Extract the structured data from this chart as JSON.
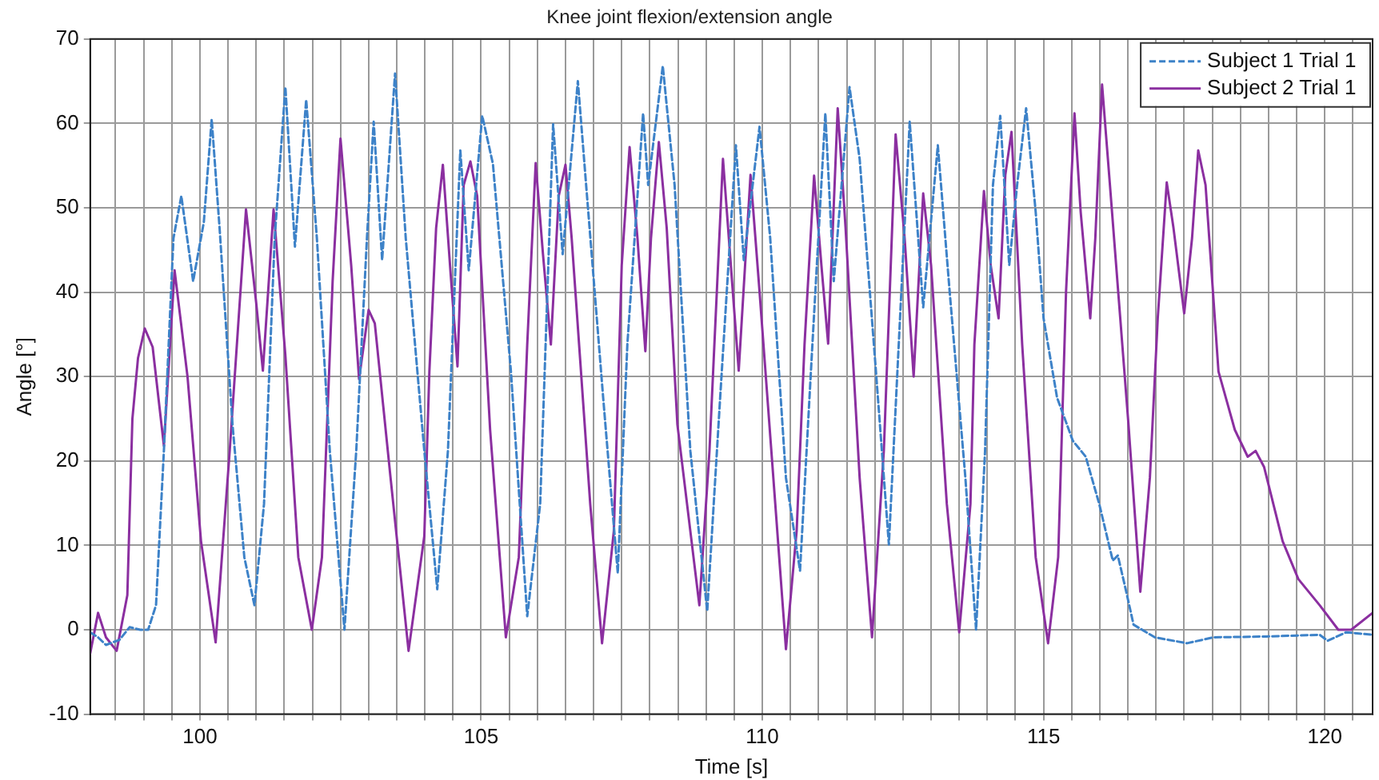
{
  "chart_data": {
    "type": "line",
    "title": "Knee joint flexion/extension angle",
    "xlabel": "Time [s]",
    "ylabel": "Angle [°]",
    "xlim": [
      98.05,
      120.85
    ],
    "xticks": [
      {
        "value": 98.5,
        "label": null
      },
      {
        "value": 99,
        "label": null
      },
      {
        "value": 99.5,
        "label": null
      },
      100,
      {
        "value": 100.5,
        "label": null
      },
      {
        "value": 101,
        "label": null
      },
      {
        "value": 101.5,
        "label": null
      },
      {
        "value": 102,
        "label": null
      },
      {
        "value": 102.5,
        "label": null
      },
      {
        "value": 103,
        "label": null
      },
      {
        "value": 103.5,
        "label": null
      },
      {
        "value": 104,
        "label": null
      },
      {
        "value": 104.5,
        "label": null
      },
      105,
      {
        "value": 105.5,
        "label": null
      },
      {
        "value": 106,
        "label": null
      },
      {
        "value": 106.5,
        "label": null
      },
      {
        "value": 107,
        "label": null
      },
      {
        "value": 107.5,
        "label": null
      },
      {
        "value": 108,
        "label": null
      },
      {
        "value": 108.5,
        "label": null
      },
      {
        "value": 109,
        "label": null
      },
      {
        "value": 109.5,
        "label": null
      },
      110,
      {
        "value": 110.5,
        "label": null
      },
      {
        "value": 111,
        "label": null
      },
      {
        "value": 111.5,
        "label": null
      },
      {
        "value": 112,
        "label": null
      },
      {
        "value": 112.5,
        "label": null
      },
      {
        "value": 113,
        "label": null
      },
      {
        "value": 113.5,
        "label": null
      },
      {
        "value": 114,
        "label": null
      },
      {
        "value": 114.5,
        "label": null
      },
      115,
      {
        "value": 115.5,
        "label": null
      },
      {
        "value": 116,
        "label": null
      },
      {
        "value": 116.5,
        "label": null
      },
      {
        "value": 117,
        "label": null
      },
      {
        "value": 117.5,
        "label": null
      },
      {
        "value": 118,
        "label": null
      },
      {
        "value": 118.5,
        "label": null
      },
      {
        "value": 119,
        "label": null
      },
      {
        "value": 119.5,
        "label": null
      },
      120,
      {
        "value": 120.5,
        "label": null
      }
    ],
    "ylim": [
      -10,
      70
    ],
    "yticks": [
      -10,
      0,
      10,
      20,
      30,
      40,
      50,
      60,
      70
    ],
    "grid": true,
    "legend": "top right",
    "marker": "none",
    "series": [
      {
        "name": "Subject 1 Trial 1",
        "color": "#3d82c8",
        "line_style": "dashed",
        "x": [
          98.05,
          98.19,
          98.33,
          98.57,
          98.75,
          98.94,
          99.08,
          99.22,
          99.36,
          99.53,
          99.67,
          99.88,
          100.07,
          100.21,
          100.35,
          100.58,
          100.79,
          100.97,
          101.14,
          101.33,
          101.52,
          101.69,
          101.89,
          102.08,
          102.31,
          102.57,
          102.78,
          102.97,
          103.09,
          103.24,
          103.47,
          103.66,
          103.99,
          104.22,
          104.41,
          104.63,
          104.78,
          105.02,
          105.21,
          105.53,
          105.82,
          106.05,
          106.28,
          106.45,
          106.72,
          106.89,
          107.17,
          107.43,
          107.6,
          107.88,
          107.97,
          108.23,
          108.44,
          108.72,
          109.02,
          109.25,
          109.53,
          109.67,
          109.95,
          110.14,
          110.42,
          110.67,
          110.89,
          111.12,
          111.27,
          111.55,
          111.73,
          112.02,
          112.25,
          112.62,
          112.86,
          113.12,
          113.33,
          113.61,
          113.8,
          113.96,
          114.1,
          114.23,
          114.39,
          114.53,
          114.69,
          114.86,
          115,
          115.24,
          115.52,
          115.75,
          115.99,
          116.23,
          116.32,
          116.46,
          116.6,
          116.98,
          117.55,
          118.02,
          118.96,
          119.91,
          120.05,
          120.38,
          120.85
        ],
        "values": [
          -0.3,
          -0.9,
          -1.8,
          -1.2,
          0.3,
          0,
          0,
          2.9,
          21.2,
          46.4,
          51.4,
          41.3,
          48.3,
          60.5,
          47.6,
          24.3,
          8.6,
          2.9,
          14.9,
          46.4,
          64.3,
          45.4,
          62.8,
          46.4,
          21.2,
          0,
          21.2,
          46.4,
          60.2,
          43.8,
          65.9,
          46.4,
          21.2,
          4.8,
          21.2,
          56.8,
          42.6,
          60.9,
          55.2,
          30.6,
          1.6,
          14.9,
          59.9,
          44.5,
          65,
          50.8,
          27.5,
          6.7,
          33.8,
          61.2,
          52.7,
          66.8,
          52.7,
          21.2,
          2.2,
          27.5,
          57.4,
          43.8,
          59.6,
          46.4,
          18,
          7,
          33.8,
          61.2,
          41.3,
          64.3,
          55.8,
          30.6,
          10.1,
          60.2,
          38.2,
          57.4,
          40.1,
          18,
          0,
          21.2,
          52.7,
          60.9,
          43.2,
          52.7,
          61.8,
          49.5,
          36.9,
          27.5,
          22.4,
          20.5,
          14.9,
          8.2,
          8.8,
          4.8,
          0.6,
          -0.9,
          -1.6,
          -0.9,
          -0.8,
          -0.6,
          -1.3,
          -0.3,
          -0.6
        ]
      },
      {
        "name": "Subject 2 Trial 1",
        "color": "#8b2fa0",
        "line_style": "solid",
        "x": [
          98.05,
          98.19,
          98.33,
          98.52,
          98.71,
          98.8,
          98.9,
          99.02,
          99.16,
          99.36,
          99.55,
          99.78,
          100.02,
          100.28,
          100.53,
          100.82,
          101,
          101.12,
          101.31,
          101.52,
          101.75,
          101.99,
          102.17,
          102.36,
          102.5,
          102.69,
          102.83,
          103,
          103.11,
          103.39,
          103.71,
          103.99,
          104.08,
          104.2,
          104.32,
          104.46,
          104.58,
          104.69,
          104.81,
          104.93,
          105.16,
          105.44,
          105.67,
          105.82,
          105.97,
          106.1,
          106.24,
          106.38,
          106.5,
          106.61,
          106.94,
          107.15,
          107.36,
          107.5,
          107.64,
          107.78,
          107.92,
          108.02,
          108.16,
          108.3,
          108.49,
          108.88,
          109.06,
          109.3,
          109.44,
          109.58,
          109.79,
          109.95,
          110.23,
          110.42,
          110.61,
          110.75,
          110.92,
          111.05,
          111.17,
          111.34,
          111.48,
          111.73,
          111.95,
          112.16,
          112.37,
          112.53,
          112.69,
          112.86,
          113,
          113.28,
          113.5,
          113.7,
          113.77,
          113.94,
          114.06,
          114.2,
          114.32,
          114.43,
          114.62,
          114.86,
          115.08,
          115.26,
          115.4,
          115.55,
          115.66,
          115.83,
          115.92,
          116.04,
          116.18,
          116.51,
          116.72,
          116.89,
          117.03,
          117.19,
          117.31,
          117.5,
          117.64,
          117.75,
          117.88,
          118.11,
          118.4,
          118.63,
          118.77,
          118.92,
          119.25,
          119.53,
          119.91,
          120.24,
          120.47,
          120.85
        ],
        "values": [
          -2.8,
          2,
          -0.9,
          -2.5,
          4.1,
          25,
          32.2,
          35.7,
          33.5,
          21.8,
          42.6,
          30,
          10.5,
          -1.5,
          21.2,
          49.8,
          38.8,
          30.7,
          49.8,
          32.5,
          8.6,
          0,
          8.6,
          41.3,
          58.2,
          43.2,
          29.7,
          37.9,
          36.3,
          18,
          -2.5,
          11.1,
          30.6,
          47.6,
          55.1,
          42,
          31.2,
          52.7,
          55.5,
          51.4,
          23.7,
          -0.9,
          8.6,
          33.8,
          55.3,
          44.5,
          33.8,
          51.4,
          55.1,
          46.4,
          14.9,
          -1.6,
          11.7,
          43.2,
          57.2,
          46.4,
          33,
          46.4,
          57.8,
          47.6,
          24.3,
          2.9,
          21.2,
          55.8,
          43.2,
          30.7,
          53.9,
          40.1,
          14.9,
          -2.3,
          11.7,
          33.8,
          53.8,
          43.2,
          33.9,
          61.8,
          47.6,
          18,
          -0.9,
          21.2,
          58.7,
          46.4,
          30,
          51.7,
          43.2,
          14.9,
          -0.3,
          14.9,
          33.8,
          52,
          43.2,
          36.9,
          53.9,
          59,
          33.8,
          8.6,
          -1.6,
          8.6,
          40.1,
          61.2,
          49.5,
          36.9,
          46.4,
          64.6,
          52.7,
          24.3,
          4.5,
          18,
          36.9,
          53,
          47.6,
          37.5,
          46.4,
          56.8,
          52.7,
          30.6,
          23.7,
          20.5,
          21.2,
          19.3,
          10.5,
          6,
          2.9,
          0,
          0,
          2
        ]
      }
    ]
  }
}
